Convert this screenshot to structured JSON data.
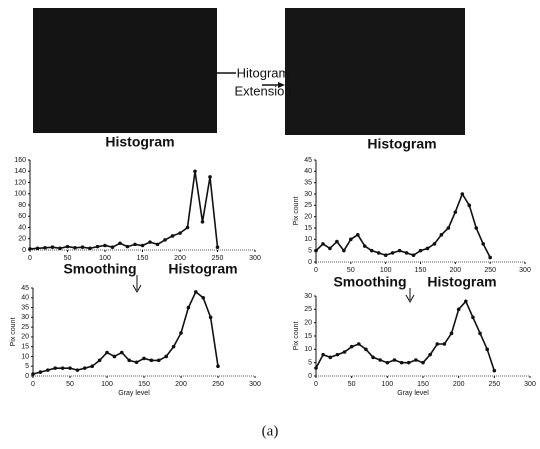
{
  "labels": {
    "left_image_caption": "Histogram",
    "right_image_caption": "Histogram",
    "arrow_label": [
      "Hitogram",
      "Extension"
    ],
    "left_smoothing": [
      "Smoothing",
      "Histogram"
    ],
    "right_smoothing": [
      "Smoothing",
      "Histogram"
    ]
  },
  "caption": "(a)",
  "chart_data": [
    {
      "type": "line",
      "x": [
        0,
        10,
        20,
        30,
        40,
        50,
        60,
        70,
        80,
        90,
        100,
        110,
        120,
        130,
        140,
        150,
        160,
        170,
        180,
        190,
        200,
        210,
        220,
        230,
        240,
        250
      ],
      "values": [
        2,
        3,
        4,
        5,
        3,
        6,
        4,
        5,
        3,
        6,
        8,
        5,
        12,
        6,
        10,
        8,
        14,
        10,
        18,
        25,
        30,
        40,
        140,
        50,
        130,
        5
      ],
      "color": "#111111",
      "xlim": [
        0,
        300
      ],
      "ylim": [
        0,
        160
      ],
      "xticks": [
        0,
        50,
        100,
        150,
        200,
        250,
        300
      ],
      "yticks": [
        0,
        20,
        40,
        60,
        80,
        100,
        120,
        140,
        160
      ]
    },
    {
      "type": "line",
      "x": [
        0,
        10,
        20,
        30,
        40,
        50,
        60,
        70,
        80,
        90,
        100,
        110,
        120,
        130,
        140,
        150,
        160,
        170,
        180,
        190,
        200,
        210,
        220,
        230,
        240,
        250
      ],
      "values": [
        5,
        8,
        6,
        9,
        5,
        10,
        12,
        7,
        5,
        4,
        3,
        4,
        5,
        4,
        3,
        5,
        6,
        8,
        12,
        15,
        22,
        30,
        25,
        15,
        8,
        2
      ],
      "color": "#111111",
      "ylabel": "Pix count",
      "xlim": [
        0,
        300
      ],
      "ylim": [
        0,
        45
      ],
      "xticks": [
        0,
        50,
        100,
        150,
        200,
        250,
        300
      ],
      "yticks": [
        0,
        5,
        10,
        15,
        20,
        25,
        30,
        35,
        40,
        45
      ]
    },
    {
      "type": "line",
      "x": [
        0,
        10,
        20,
        30,
        40,
        50,
        60,
        70,
        80,
        90,
        100,
        110,
        120,
        130,
        140,
        150,
        160,
        170,
        180,
        190,
        200,
        210,
        220,
        230,
        240,
        250
      ],
      "values": [
        1,
        2,
        3,
        4,
        4,
        4,
        3,
        4,
        5,
        8,
        12,
        10,
        12,
        8,
        7,
        9,
        8,
        8,
        10,
        15,
        22,
        35,
        43,
        40,
        30,
        5
      ],
      "color": "#111111",
      "ylabel": "Pix count",
      "xlabel": "Gray level",
      "xlim": [
        0,
        300
      ],
      "ylim": [
        0,
        45
      ],
      "xticks": [
        0,
        50,
        100,
        150,
        200,
        250,
        300
      ],
      "yticks": [
        0,
        5,
        10,
        15,
        20,
        25,
        30,
        35,
        40,
        45
      ]
    },
    {
      "type": "line",
      "x": [
        0,
        10,
        20,
        30,
        40,
        50,
        60,
        70,
        80,
        90,
        100,
        110,
        120,
        130,
        140,
        150,
        160,
        170,
        180,
        190,
        200,
        210,
        220,
        230,
        240,
        250
      ],
      "values": [
        3,
        8,
        7,
        8,
        9,
        11,
        12,
        10,
        7,
        6,
        5,
        6,
        5,
        5,
        6,
        5,
        8,
        12,
        12,
        16,
        25,
        28,
        22,
        16,
        10,
        2
      ],
      "color": "#111111",
      "ylabel": "Pix count",
      "xlabel": "Gray level",
      "xlim": [
        0,
        300
      ],
      "ylim": [
        0,
        30
      ],
      "xticks": [
        0,
        50,
        100,
        150,
        200,
        250,
        300
      ],
      "yticks": [
        0,
        5,
        10,
        15,
        20,
        25,
        30
      ]
    }
  ]
}
